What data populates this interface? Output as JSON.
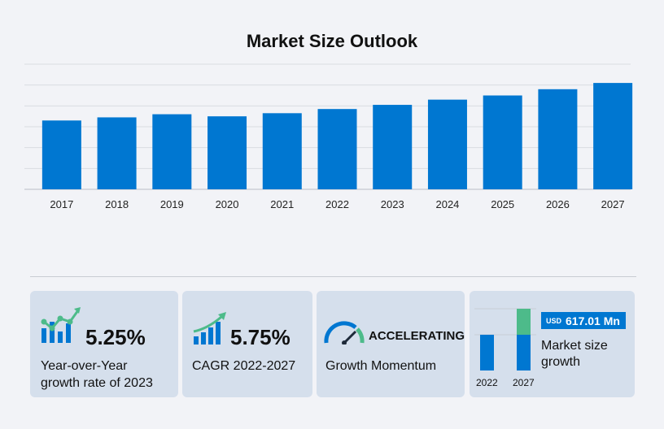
{
  "title": "Market Size Outlook",
  "chart_data": {
    "type": "bar",
    "title": "Market Size Outlook",
    "categories": [
      "2017",
      "2018",
      "2019",
      "2020",
      "2021",
      "2022",
      "2023",
      "2024",
      "2025",
      "2026",
      "2027"
    ],
    "values": [
      3.3,
      3.45,
      3.6,
      3.5,
      3.65,
      3.85,
      4.05,
      4.3,
      4.5,
      4.8,
      5.1
    ],
    "ylim": [
      0,
      6
    ],
    "grid": true,
    "bar_color": "#0077d1",
    "xlabel": "",
    "ylabel": ""
  },
  "stats": {
    "yoy": {
      "value": "5.25%",
      "line1": "Year-over-Year",
      "line2": "growth rate of 2023",
      "icon": "growth-chart-icon"
    },
    "cagr": {
      "value": "5.75%",
      "line1": "CAGR 2022-2027",
      "icon": "rising-bars-icon"
    },
    "momentum": {
      "value": "ACCELERATING",
      "line1": "Growth Momentum",
      "icon": "speedometer-icon"
    },
    "market": {
      "unit": "USD",
      "value": "617.01 Mn",
      "line1": "Market size",
      "line2": "growth",
      "year_start": "2022",
      "year_end": "2027",
      "colors": {
        "base": "#0077d1",
        "growth": "#4dbb8a"
      }
    }
  }
}
